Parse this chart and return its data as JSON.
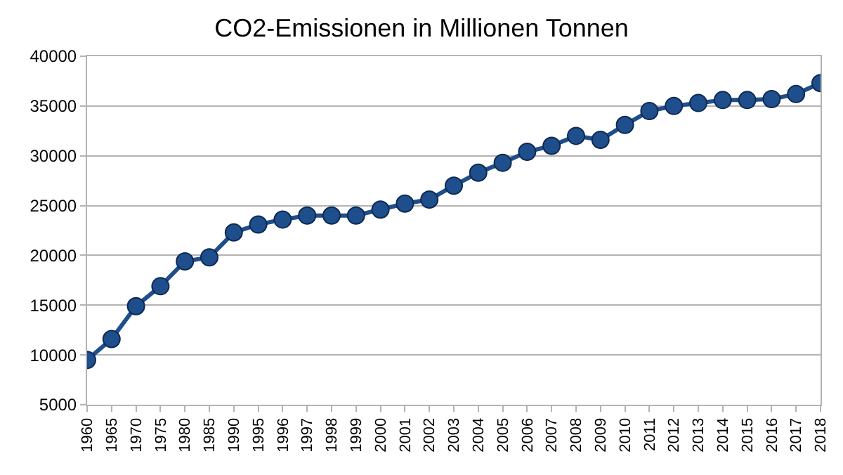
{
  "chart_data": {
    "type": "line",
    "title": "CO2-Emissionen in Millionen Tonnen",
    "categories": [
      "1960",
      "1965",
      "1970",
      "1975",
      "1980",
      "1985",
      "1990",
      "1995",
      "1996",
      "1997",
      "1998",
      "1999",
      "2000",
      "2001",
      "2002",
      "2003",
      "2004",
      "2005",
      "2006",
      "2007",
      "2008",
      "2009",
      "2010",
      "2011",
      "2012",
      "2013",
      "2014",
      "2015",
      "2016",
      "2017",
      "2018"
    ],
    "series": [
      {
        "color": "#1f4e8c",
        "values": [
          9500,
          11600,
          14900,
          16900,
          19400,
          19800,
          22300,
          23100,
          23600,
          24000,
          24000,
          24000,
          24600,
          25200,
          25600,
          27000,
          28300,
          29300,
          30400,
          31000,
          32000,
          31600,
          33100,
          34500,
          35000,
          35300,
          35600,
          35600,
          35700,
          36200,
          37300
        ]
      }
    ],
    "ylim": [
      5000,
      40000
    ],
    "yticks": [
      5000,
      10000,
      15000,
      20000,
      25000,
      30000,
      35000,
      40000
    ],
    "grid": "y",
    "marker": "circle",
    "line_style": "solid"
  }
}
